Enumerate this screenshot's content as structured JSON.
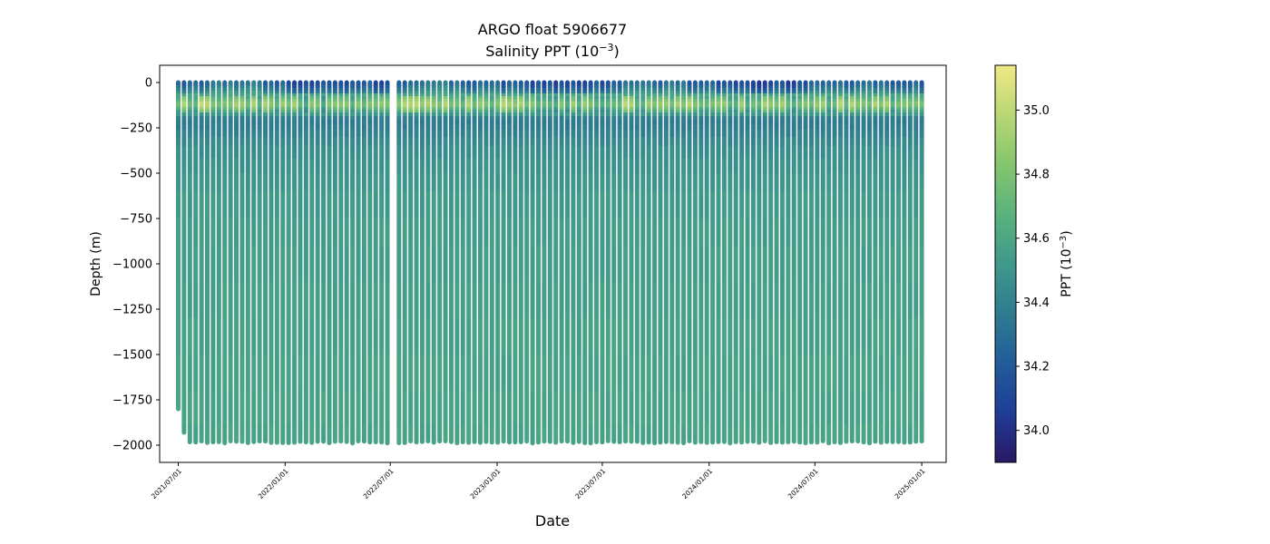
{
  "chart_data": {
    "type": "scatter",
    "title": "ARGO float 5906677",
    "subtitle_prefix": "Salinity PPT (10",
    "subtitle_exp": "−3",
    "subtitle_suffix": ")",
    "xlabel": "Date",
    "ylabel": "Depth (m)",
    "colorbar_label_prefix": "PPT (10",
    "colorbar_label_exp": "−3",
    "colorbar_label_suffix": ")",
    "xlim": [
      "2021-05-30",
      "2025-02-12"
    ],
    "ylim": [
      -2095,
      95
    ],
    "yticks": [
      0,
      -250,
      -500,
      -750,
      -1000,
      -1250,
      -1500,
      -1750,
      -2000
    ],
    "ytick_labels": [
      "0",
      "−250",
      "−500",
      "−750",
      "−1000",
      "−1250",
      "−1500",
      "−1750",
      "−2000"
    ],
    "xticks": [
      "2021-07-01",
      "2022-01-01",
      "2022-07-01",
      "2023-01-01",
      "2023-07-01",
      "2024-01-01",
      "2024-07-01",
      "2025-01-01"
    ],
    "xtick_labels": [
      "2021/07/01",
      "2022/01/01",
      "2022/07/01",
      "2023/01/01",
      "2023/07/01",
      "2024/01/01",
      "2024/07/01",
      "2025/01/01"
    ],
    "colorbar": {
      "vmin": 33.9,
      "vmax": 35.14,
      "ticks": [
        34.0,
        34.2,
        34.4,
        34.6,
        34.8,
        35.0
      ],
      "tick_labels": [
        "34.0",
        "34.2",
        "34.4",
        "34.6",
        "34.8",
        "35.0"
      ],
      "colormap_stops": [
        "#2a1864",
        "#1f3d96",
        "#225c9a",
        "#2f7b90",
        "#3f998b",
        "#5ab27c",
        "#85c56e",
        "#b8d774",
        "#f0e986"
      ]
    },
    "profiles": {
      "first_date": "2021-07-01",
      "last_date": "2025-01-01",
      "interval_days": 10,
      "gap": [
        "2022-07-04",
        "2022-07-13"
      ],
      "typical_max_depth": -1985,
      "first_profile_max_depth": -1800,
      "second_profile_max_depth": -1930
    },
    "salinity_profile": {
      "depth": [
        0,
        -40,
        -80,
        -120,
        -160,
        -200,
        -260,
        -350,
        -500,
        -750,
        -1000,
        -1500,
        -2000
      ],
      "ppt_typical": [
        34.3,
        34.45,
        34.65,
        34.85,
        34.6,
        34.35,
        34.38,
        34.45,
        34.5,
        34.54,
        34.55,
        34.57,
        34.58
      ]
    }
  }
}
